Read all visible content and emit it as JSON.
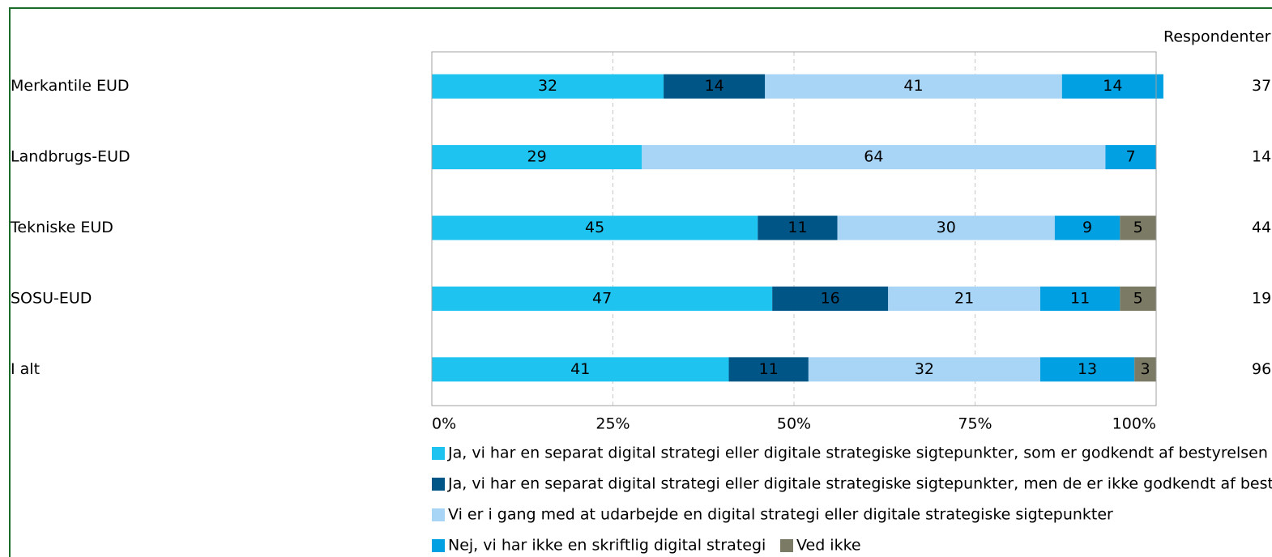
{
  "chart_data": {
    "type": "stacked-barh",
    "categories": [
      "Merkantile EUD",
      "Landbrugs-EUD",
      "Tekniske EUD",
      "SOSU-EUD",
      "I alt"
    ],
    "series": [
      {
        "name": "Ja, vi har en separat digital strategi eller digitale strategiske sigtepunkter, som er godkendt af bestyrelsen",
        "color": "#1fc3f0",
        "values": [
          32,
          29,
          45,
          47,
          41
        ]
      },
      {
        "name": "Ja, vi har en separat digital strategi eller digitale strategiske sigtepunkter, men de er ikke godkendt af bestyrelsen",
        "color": "#005587",
        "values": [
          14,
          null,
          11,
          16,
          11
        ]
      },
      {
        "name": "Vi er i gang med at udarbejde en digital strategi eller digitale strategiske sigtepunkter",
        "color": "#a8d4f5",
        "values": [
          41,
          64,
          30,
          21,
          32
        ]
      },
      {
        "name": "Nej, vi har ikke en skriftlig digital strategi",
        "color": "#00a0e3",
        "values": [
          14,
          7,
          9,
          11,
          13
        ]
      },
      {
        "name": "Ved ikke",
        "color": "#7a7a65",
        "values": [
          null,
          null,
          5,
          5,
          3
        ]
      }
    ],
    "xlim": [
      0,
      100
    ],
    "xticks": [
      {
        "value": 0,
        "label": "0%"
      },
      {
        "value": 25,
        "label": "25%"
      },
      {
        "value": 50,
        "label": "50%"
      },
      {
        "value": 75,
        "label": "75%"
      },
      {
        "value": 100,
        "label": "100%"
      }
    ],
    "grid": true,
    "respondents_title": "Respondenter",
    "respondents": [
      37,
      14,
      44,
      19,
      96
    ]
  }
}
